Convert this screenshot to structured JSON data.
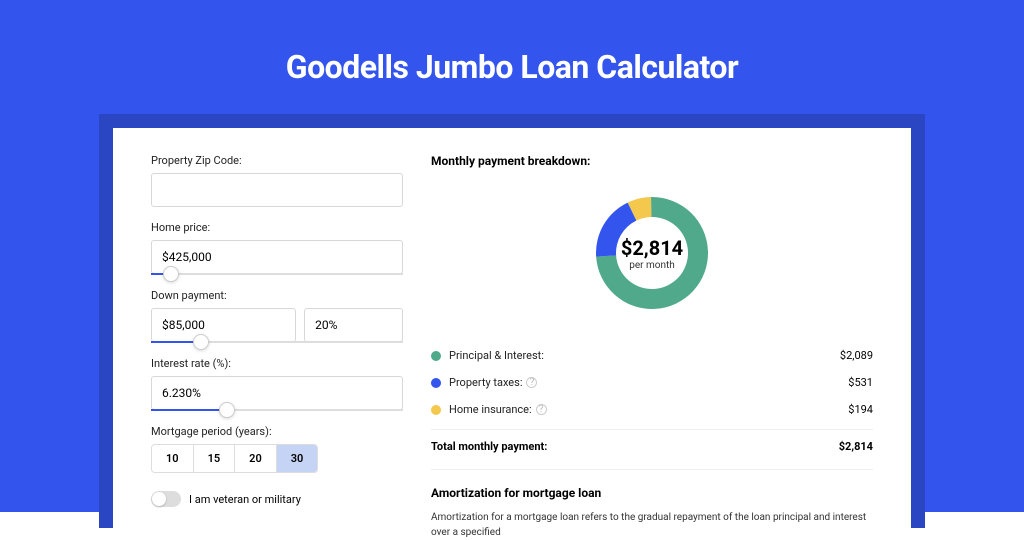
{
  "page": {
    "title": "Goodells Jumbo Loan Calculator",
    "bg_color": "#3355ee",
    "card_wrap_color": "#2a46c2",
    "card_color": "#ffffff"
  },
  "form": {
    "zip": {
      "label": "Property Zip Code:",
      "value": ""
    },
    "home_price": {
      "label": "Home price:",
      "value": "$425,000",
      "slider_pct": 8
    },
    "down_payment": {
      "label": "Down payment:",
      "amount": "$85,000",
      "percent": "20%",
      "slider_pct": 20
    },
    "interest": {
      "label": "Interest rate (%):",
      "value": "6.230%",
      "slider_pct": 30
    },
    "period": {
      "label": "Mortgage period (years):",
      "options": [
        "10",
        "15",
        "20",
        "30"
      ],
      "selected": "30"
    },
    "veteran": {
      "label": "I am veteran or military",
      "checked": false
    }
  },
  "breakdown": {
    "title": "Monthly payment breakdown:",
    "center_amount": "$2,814",
    "center_sub": "per month",
    "donut": {
      "type": "donut",
      "radius": 56,
      "thickness": 20,
      "slices": [
        {
          "label": "Principal & Interest:",
          "value": "$2,089",
          "num": 2089,
          "color": "#4fa98a",
          "info": false
        },
        {
          "label": "Property taxes:",
          "value": "$531",
          "num": 531,
          "color": "#3355ee",
          "info": true
        },
        {
          "label": "Home insurance:",
          "value": "$194",
          "num": 194,
          "color": "#f3c84c",
          "info": true
        }
      ],
      "total_label": "Total monthly payment:",
      "total_value": "$2,814"
    }
  },
  "amortization": {
    "title": "Amortization for mortgage loan",
    "text": "Amortization for a mortgage loan refers to the gradual repayment of the loan principal and interest over a specified"
  }
}
